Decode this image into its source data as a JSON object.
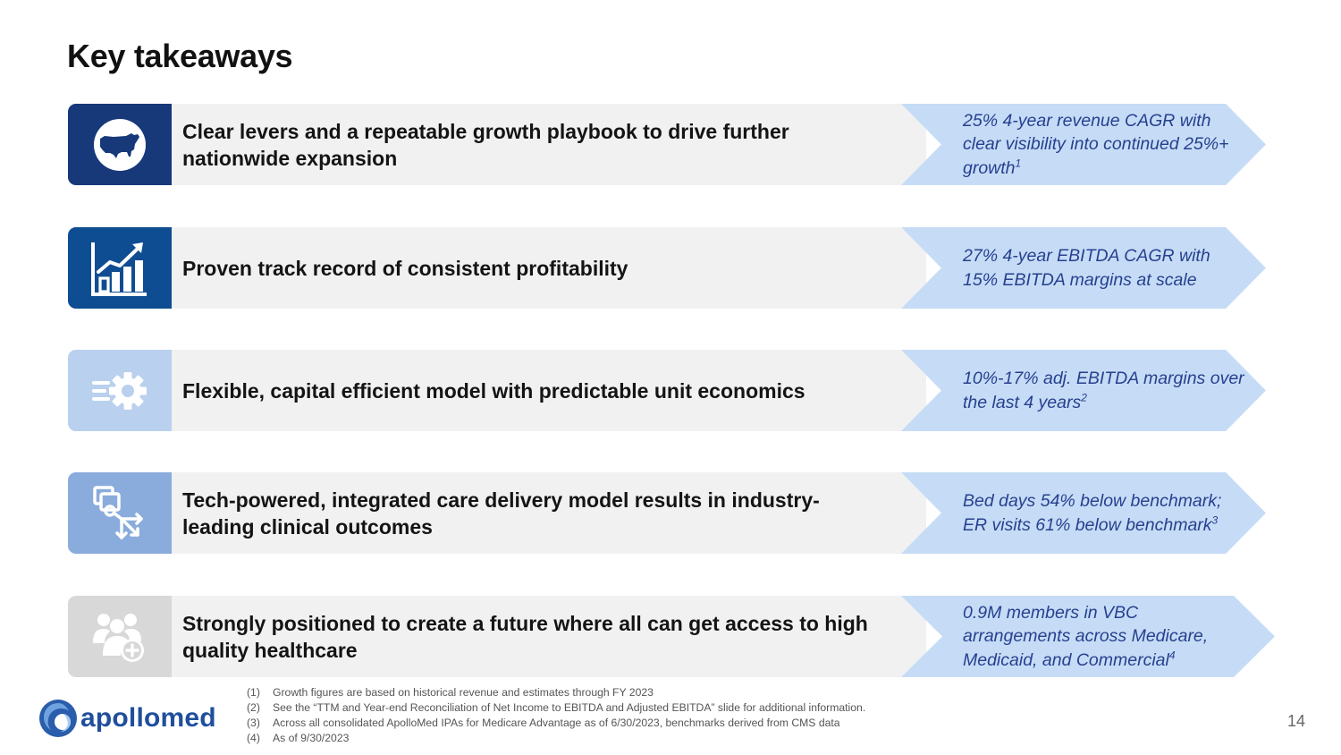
{
  "title": "Key takeaways",
  "rows": [
    {
      "icon": "usa-map-icon",
      "headline": "Clear levers and a repeatable growth playbook to drive further nationwide expansion",
      "stat": "25% 4-year revenue CAGR with clear visibility into continued 25%+ growth",
      "sup": "1"
    },
    {
      "icon": "growth-chart-icon",
      "headline": "Proven track record of consistent profitability",
      "stat": "27% 4-year EBITDA CAGR with 15% EBITDA margins at scale",
      "sup": ""
    },
    {
      "icon": "gear-speed-icon",
      "headline": "Flexible, capital efficient model with predictable unit economics",
      "stat": "10%-17% adj. EBITDA margins over the last 4 years",
      "sup": "2"
    },
    {
      "icon": "integration-arrows-icon",
      "headline": "Tech-powered, integrated care delivery model results in industry-leading clinical outcomes",
      "stat": "Bed days 54% below benchmark; ER visits 61% below benchmark",
      "sup": "3"
    },
    {
      "icon": "people-health-plus-icon",
      "headline": "Strongly positioned to create a future where all can get access to high quality healthcare",
      "stat": "0.9M members in VBC arrangements across Medicare, Medicaid, and Commercial",
      "sup": "4"
    }
  ],
  "footnotes": [
    {
      "num": "(1)",
      "text": "Growth figures are based on historical revenue and estimates through FY 2023"
    },
    {
      "num": "(2)",
      "text": "See the “TTM and Year-end Reconciliation of Net Income to EBITDA and Adjusted EBITDA” slide for additional information."
    },
    {
      "num": "(3)",
      "text": "Across all consolidated ApolloMed IPAs for Medicare Advantage as of 6/30/2023, benchmarks derived from CMS data"
    },
    {
      "num": "(4)",
      "text": "As of 9/30/2023"
    }
  ],
  "logo_text": "apollomed",
  "page_number": "14",
  "colors": {
    "icon_bg": [
      "#17397a",
      "#0f4d92",
      "#b9d0ee",
      "#8aacdc",
      "#d8d8d8"
    ],
    "stat_text": "#27408f",
    "chevron": "#c6dcf6",
    "bar": "#f1f1f1"
  }
}
